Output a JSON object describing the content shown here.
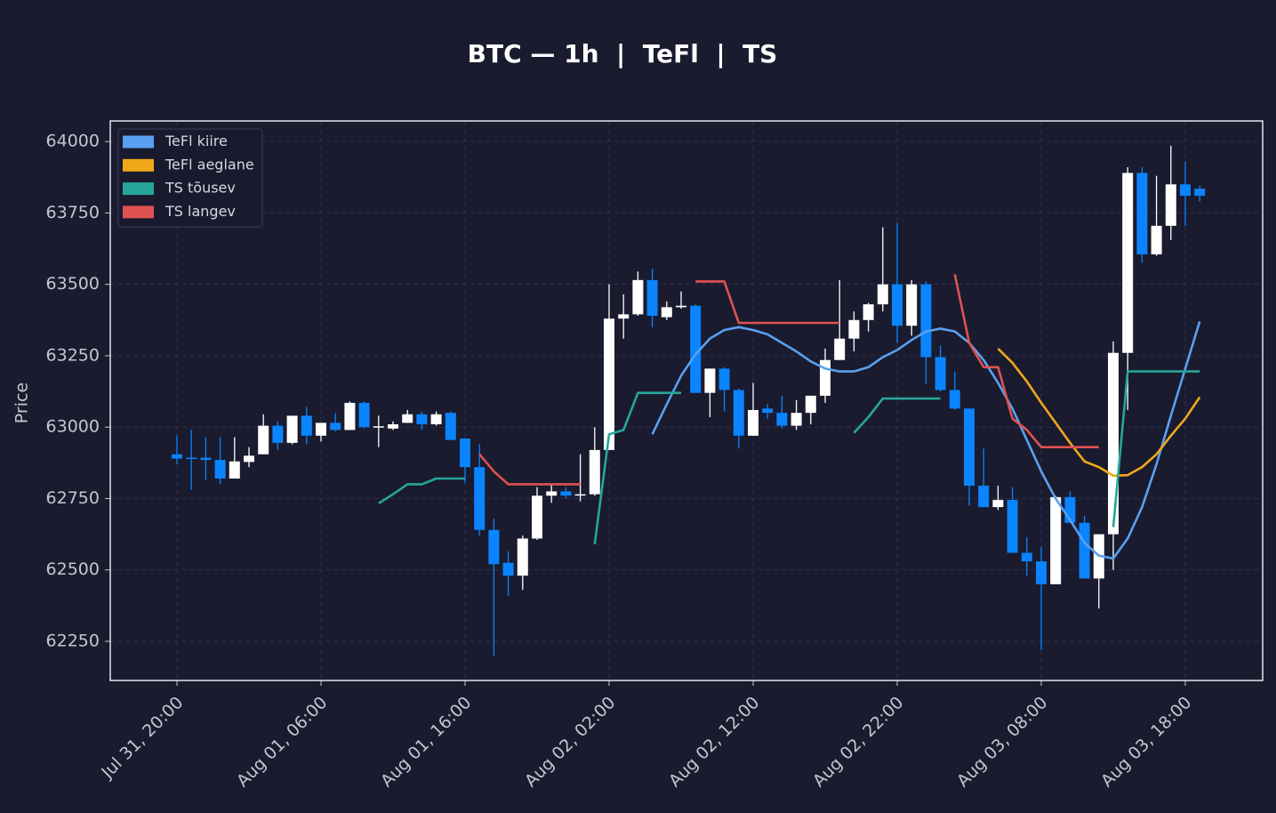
{
  "chart_data": {
    "type": "candlestick",
    "title": "BTC — 1h  |  TeFl  |  TS",
    "y_label": "Price",
    "x": [
      "Jul 31, 20:00",
      "Jul 31, 21:00",
      "Jul 31, 22:00",
      "Jul 31, 23:00",
      "Aug 01, 00:00",
      "Aug 01, 01:00",
      "Aug 01, 02:00",
      "Aug 01, 03:00",
      "Aug 01, 04:00",
      "Aug 01, 05:00",
      "Aug 01, 06:00",
      "Aug 01, 07:00",
      "Aug 01, 08:00",
      "Aug 01, 09:00",
      "Aug 01, 10:00",
      "Aug 01, 11:00",
      "Aug 01, 12:00",
      "Aug 01, 13:00",
      "Aug 01, 14:00",
      "Aug 01, 15:00",
      "Aug 01, 16:00",
      "Aug 01, 17:00",
      "Aug 01, 18:00",
      "Aug 01, 19:00",
      "Aug 01, 20:00",
      "Aug 01, 21:00",
      "Aug 01, 22:00",
      "Aug 01, 23:00",
      "Aug 02, 00:00",
      "Aug 02, 01:00",
      "Aug 02, 02:00",
      "Aug 02, 03:00",
      "Aug 02, 04:00",
      "Aug 02, 05:00",
      "Aug 02, 06:00",
      "Aug 02, 07:00",
      "Aug 02, 08:00",
      "Aug 02, 09:00",
      "Aug 02, 10:00",
      "Aug 02, 11:00",
      "Aug 02, 12:00",
      "Aug 02, 13:00",
      "Aug 02, 14:00",
      "Aug 02, 15:00",
      "Aug 02, 16:00",
      "Aug 02, 17:00",
      "Aug 02, 18:00",
      "Aug 02, 19:00",
      "Aug 02, 20:00",
      "Aug 02, 21:00",
      "Aug 02, 22:00",
      "Aug 02, 23:00",
      "Aug 03, 00:00",
      "Aug 03, 01:00",
      "Aug 03, 02:00",
      "Aug 03, 03:00",
      "Aug 03, 04:00",
      "Aug 03, 05:00",
      "Aug 03, 06:00",
      "Aug 03, 07:00",
      "Aug 03, 08:00",
      "Aug 03, 09:00",
      "Aug 03, 10:00",
      "Aug 03, 11:00",
      "Aug 03, 12:00",
      "Aug 03, 13:00",
      "Aug 03, 14:00",
      "Aug 03, 15:00",
      "Aug 03, 16:00",
      "Aug 03, 17:00",
      "Aug 03, 18:00",
      "Aug 03, 19:00"
    ],
    "open": [
      62905,
      62893,
      62893,
      62885,
      62820,
      62878,
      62905,
      63005,
      62945,
      63040,
      62970,
      63015,
      62990,
      63085,
      63000,
      62995,
      63015,
      63045,
      63010,
      63050,
      62960,
      62860,
      62640,
      62525,
      62480,
      62610,
      62760,
      62775,
      62762,
      62765,
      62920,
      63380,
      63395,
      63515,
      63385,
      63420,
      63425,
      63120,
      63205,
      63130,
      62970,
      63065,
      63050,
      63005,
      63050,
      63110,
      63235,
      63310,
      63375,
      63430,
      63500,
      63355,
      63500,
      63245,
      63130,
      63065,
      62795,
      62720,
      62745,
      62560,
      62530,
      62450,
      62755,
      62665,
      62470,
      62625,
      63260,
      63890,
      63605,
      63705,
      63850,
      63835
    ],
    "high": [
      62970,
      62990,
      62965,
      62965,
      62965,
      62930,
      63045,
      63020,
      63040,
      63070,
      63015,
      63050,
      63090,
      63090,
      63040,
      63020,
      63060,
      63055,
      63055,
      63055,
      62960,
      62940,
      62680,
      62565,
      62620,
      62790,
      62800,
      62790,
      62905,
      63000,
      63500,
      63465,
      63545,
      63555,
      63440,
      63475,
      63430,
      63205,
      63210,
      63135,
      63155,
      63080,
      63110,
      63095,
      63110,
      63275,
      63515,
      63405,
      63435,
      63700,
      63715,
      63515,
      63510,
      63285,
      63195,
      63065,
      62925,
      62795,
      62790,
      62615,
      62580,
      62760,
      62775,
      62690,
      62625,
      63300,
      63910,
      63910,
      63880,
      63985,
      63930,
      63845
    ],
    "low": [
      62870,
      62780,
      62815,
      62800,
      62820,
      62860,
      62905,
      62920,
      62940,
      62940,
      62950,
      62985,
      62990,
      62995,
      62930,
      62990,
      63015,
      62990,
      63005,
      62955,
      62805,
      62620,
      62200,
      62410,
      62430,
      62605,
      62735,
      62750,
      62740,
      62760,
      62920,
      63310,
      63390,
      63350,
      63375,
      63415,
      63120,
      63035,
      63055,
      62925,
      62970,
      63030,
      62995,
      62990,
      63010,
      63085,
      63235,
      63265,
      63335,
      63405,
      63295,
      63320,
      63150,
      63125,
      63060,
      62725,
      62720,
      62710,
      62560,
      62480,
      62220,
      62450,
      62665,
      62470,
      62365,
      62500,
      63060,
      63575,
      63600,
      63655,
      63705,
      63790
    ],
    "close": [
      62890,
      62890,
      62885,
      62820,
      62880,
      62900,
      63005,
      62945,
      63040,
      62970,
      63015,
      62990,
      63085,
      63000,
      63003,
      63010,
      63045,
      63010,
      63045,
      62955,
      62860,
      62640,
      62520,
      62480,
      62610,
      62760,
      62775,
      62760,
      62765,
      62920,
      63380,
      63395,
      63515,
      63390,
      63420,
      63425,
      63120,
      63205,
      63130,
      62970,
      63060,
      63050,
      63005,
      63050,
      63110,
      63235,
      63310,
      63375,
      63430,
      63500,
      63355,
      63500,
      63245,
      63130,
      63065,
      62795,
      62720,
      62745,
      62560,
      62530,
      62450,
      62755,
      62665,
      62470,
      62625,
      63260,
      63890,
      63605,
      63705,
      63850,
      63810,
      63810
    ],
    "up_color": "#ffffff",
    "down_color": "#0a84ff",
    "series": [
      {
        "name": "TeFl kiire",
        "color": "#5aa0f0",
        "values": [
          null,
          null,
          null,
          null,
          null,
          null,
          null,
          null,
          null,
          null,
          null,
          null,
          null,
          null,
          null,
          null,
          null,
          null,
          null,
          null,
          null,
          null,
          null,
          null,
          null,
          null,
          null,
          null,
          null,
          null,
          null,
          null,
          null,
          62975,
          63080,
          63180,
          63255,
          63310,
          63340,
          63350,
          63340,
          63325,
          63295,
          63265,
          63230,
          63205,
          63195,
          63195,
          63210,
          63245,
          63270,
          63305,
          63335,
          63345,
          63335,
          63295,
          63235,
          63155,
          63065,
          62955,
          62845,
          62750,
          62675,
          62595,
          62550,
          62540,
          62610,
          62720,
          62870,
          63040,
          63205,
          63370
        ]
      },
      {
        "name": "TeFl aeglane",
        "color": "#f0a81a",
        "values": [
          null,
          null,
          null,
          null,
          null,
          null,
          null,
          null,
          null,
          null,
          null,
          null,
          null,
          null,
          null,
          null,
          null,
          null,
          null,
          null,
          null,
          null,
          null,
          null,
          null,
          null,
          null,
          null,
          null,
          null,
          null,
          null,
          null,
          null,
          null,
          null,
          null,
          null,
          null,
          null,
          null,
          null,
          null,
          null,
          null,
          null,
          null,
          null,
          null,
          null,
          null,
          null,
          null,
          null,
          null,
          null,
          null,
          63275,
          63225,
          63160,
          63085,
          63015,
          62945,
          62880,
          62860,
          62830,
          62832,
          62860,
          62905,
          62970,
          63030,
          63105
        ]
      },
      {
        "name": "TS tõusev",
        "color": "#26a69a",
        "values": [
          null,
          null,
          null,
          null,
          null,
          null,
          null,
          null,
          null,
          null,
          null,
          null,
          null,
          null,
          62733,
          62765,
          62800,
          62800,
          62820,
          62820,
          62820,
          null,
          null,
          null,
          null,
          null,
          null,
          null,
          null,
          62590,
          62975,
          62990,
          63120,
          63120,
          63120,
          63120,
          null,
          null,
          null,
          null,
          null,
          null,
          null,
          null,
          null,
          null,
          null,
          62980,
          63035,
          63100,
          63100,
          63100,
          63100,
          63100,
          null,
          null,
          null,
          null,
          null,
          null,
          null,
          null,
          null,
          null,
          null,
          62650,
          63195,
          63195,
          63195,
          63195,
          63195,
          63195
        ]
      },
      {
        "name": "TS langev",
        "color": "#e05252",
        "values": [
          null,
          null,
          null,
          null,
          null,
          null,
          null,
          null,
          null,
          null,
          null,
          null,
          null,
          null,
          null,
          null,
          null,
          null,
          null,
          null,
          null,
          62905,
          62845,
          62800,
          62800,
          62800,
          62800,
          62800,
          62800,
          null,
          null,
          null,
          null,
          null,
          null,
          null,
          63510,
          63510,
          63510,
          63365,
          63365,
          63365,
          63365,
          63365,
          63365,
          63365,
          63365,
          null,
          null,
          null,
          null,
          null,
          null,
          null,
          63535,
          63295,
          63210,
          63210,
          63030,
          62990,
          62930,
          62930,
          62930,
          62930,
          62930,
          null,
          null,
          null,
          null,
          null,
          null,
          null
        ]
      }
    ],
    "ylim": [
      62113,
      64072
    ],
    "yticks": [
      62250,
      62500,
      62750,
      63000,
      63250,
      63500,
      63750,
      64000
    ],
    "xticks": [
      "Jul 31, 20:00",
      "Aug 01, 06:00",
      "Aug 01, 16:00",
      "Aug 02, 02:00",
      "Aug 02, 12:00",
      "Aug 02, 22:00",
      "Aug 03, 08:00",
      "Aug 03, 18:00"
    ],
    "grid": true,
    "legend": "upper left"
  }
}
